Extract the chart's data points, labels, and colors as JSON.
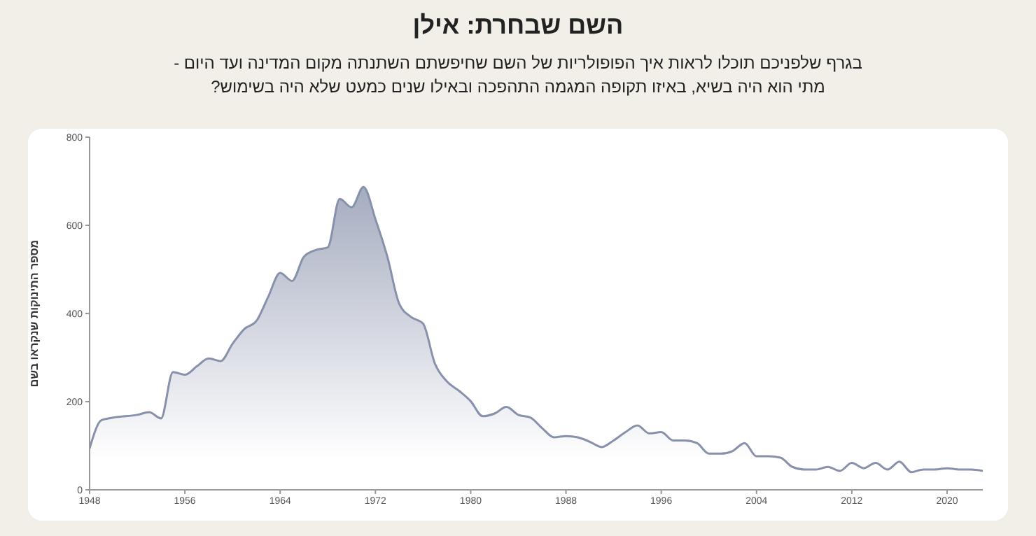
{
  "chart_data": {
    "type": "area",
    "title": "השם שבחרת: אילן",
    "subtitle": "בגרף שלפניכם תוכלו לראות איך הפופולריות של השם שחיפשתם השתנתה מקום המדינה ועד היום - מתי הוא היה בשיא, באיזו תקופה המגמה התהפכה ובאילו שנים כמעט שלא היה בשימוש?",
    "ylabel": "מספר התינוקות שנקראו בשם",
    "x": [
      1948,
      1949,
      1950,
      1952,
      1953,
      1954,
      1955,
      1956,
      1957,
      1958,
      1959,
      1960,
      1961,
      1962,
      1963,
      1964,
      1965,
      1966,
      1967,
      1968,
      1969,
      1970,
      1971,
      1972,
      1973,
      1974,
      1975,
      1976,
      1977,
      1978,
      1979,
      1980,
      1981,
      1982,
      1983,
      1984,
      1985,
      1986,
      1987,
      1988,
      1989,
      1990,
      1991,
      1992,
      1993,
      1994,
      1995,
      1996,
      1997,
      1998,
      1999,
      2000,
      2001,
      2002,
      2003,
      2004,
      2005,
      2006,
      2007,
      2008,
      2009,
      2010,
      2011,
      2012,
      2013,
      2014,
      2015,
      2016,
      2017,
      2018,
      2019,
      2020,
      2021,
      2022,
      2023
    ],
    "series": [
      {
        "color": "#8891ab",
        "values": [
          94,
          158,
          164,
          170,
          176,
          162,
          267,
          261,
          280,
          298,
          292,
          331,
          365,
          383,
          438,
          492,
          474,
          529,
          544,
          550,
          660,
          641,
          687,
          614,
          529,
          422,
          392,
          377,
          286,
          246,
          225,
          201,
          167,
          173,
          188,
          170,
          164,
          140,
          119,
          122,
          119,
          109,
          97,
          112,
          131,
          146,
          128,
          131,
          112,
          112,
          106,
          82,
          82,
          88,
          106,
          76,
          76,
          73,
          52,
          46,
          46,
          52,
          43,
          61,
          49,
          61,
          46,
          64,
          40,
          46,
          46,
          49,
          46,
          46,
          43
        ]
      }
    ],
    "xlim": [
      1948,
      2023
    ],
    "xticks": [
      1948,
      1956,
      1964,
      1972,
      1980,
      1988,
      1996,
      2004,
      2012,
      2020
    ],
    "ylim": [
      0,
      800
    ],
    "yticks": [
      0,
      200,
      400,
      600,
      800
    ],
    "grid": false,
    "legend": false
  }
}
